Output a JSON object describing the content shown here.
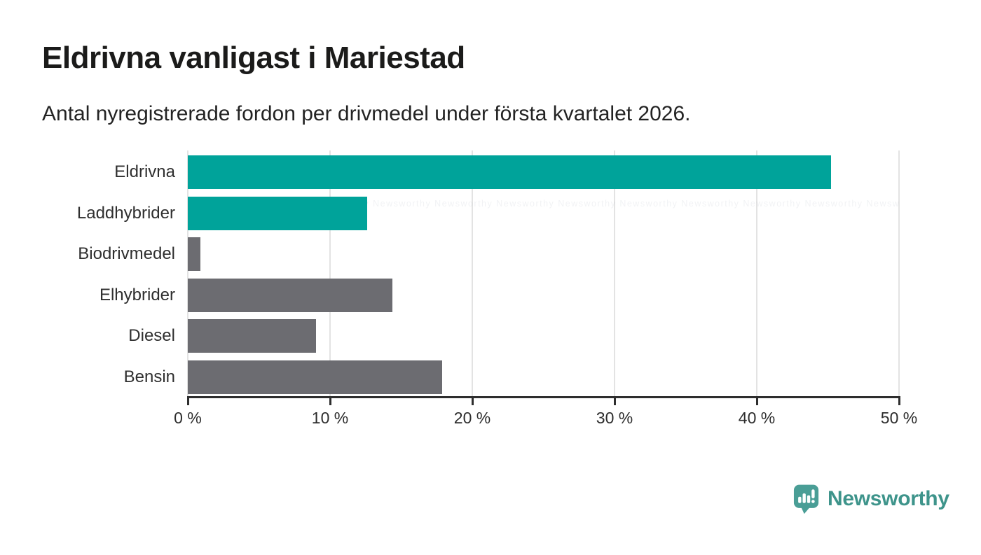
{
  "header": {
    "title": "Eldrivna vanligast i Mariestad",
    "subtitle": "Antal nyregistrerade fordon per drivmedel under första kvartalet 2026."
  },
  "chart_data": {
    "type": "bar",
    "orientation": "horizontal",
    "title": "Eldrivna vanligast i Mariestad",
    "subtitle": "Antal nyregistrerade fordon per drivmedel under första kvartalet 2026.",
    "categories": [
      "Eldrivna",
      "Laddhybrider",
      "Biodrivmedel",
      "Elhybrider",
      "Diesel",
      "Bensin"
    ],
    "values": [
      45.2,
      12.6,
      0.9,
      14.4,
      9.0,
      17.9
    ],
    "unit": "%",
    "bar_colors": [
      "#00a39a",
      "#00a39a",
      "#6c6c71",
      "#6c6c71",
      "#6c6c71",
      "#6c6c71"
    ],
    "xlim": [
      0,
      50
    ],
    "x_ticks": [
      0,
      10,
      20,
      30,
      40,
      50
    ],
    "x_tick_labels": [
      "0 %",
      "10 %",
      "20 %",
      "30 %",
      "40 %",
      "50 %"
    ],
    "grid": "vertical-gridlines",
    "legend": "none",
    "xlabel": "",
    "ylabel": ""
  },
  "branding": {
    "logo_text": "Newsworthy",
    "watermark_text": "Newsworthy"
  },
  "colors": {
    "bar_teal": "#00a39a",
    "bar_gray": "#6c6c71",
    "axis_line": "#2e2e2e",
    "gridline": "#e3e3e3",
    "title_text": "#1b1b1a",
    "label_text": "#2f2f2f",
    "logo_text_teal": "#3e948b",
    "logo_icon_teal": "#4a9e96"
  }
}
